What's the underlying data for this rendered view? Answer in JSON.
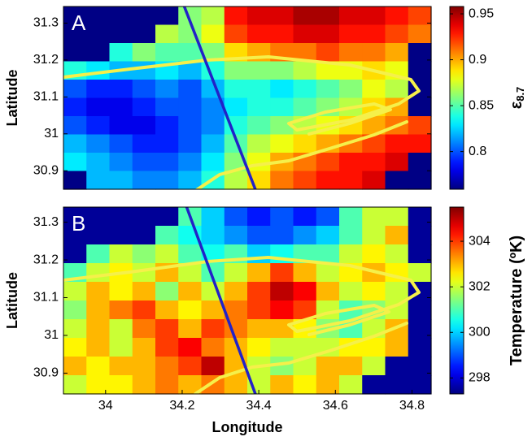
{
  "chart_data": [
    {
      "type": "heatmap",
      "panel_label": "A",
      "ylabel": "Latitude",
      "colormap": "jet",
      "colorbar_label": "ε",
      "colorbar_label_sub": "8.7",
      "xlim": [
        33.89,
        34.85
      ],
      "ylim": [
        30.85,
        31.345
      ],
      "yticks": [
        30.9,
        31,
        31.1,
        31.2,
        31.3
      ],
      "clim": [
        0.759,
        0.958
      ],
      "cticks": [
        0.8,
        0.85,
        0.9,
        0.95
      ],
      "z": [
        [
          0.76,
          0.76,
          0.76,
          0.76,
          0.76,
          0.86,
          0.87,
          0.93,
          0.94,
          0.94,
          0.95,
          0.95,
          0.94,
          0.94,
          0.93,
          0.92
        ],
        [
          0.76,
          0.76,
          0.76,
          0.76,
          0.87,
          0.86,
          0.88,
          0.92,
          0.93,
          0.93,
          0.94,
          0.94,
          0.93,
          0.93,
          0.92,
          0.91
        ],
        [
          0.76,
          0.76,
          0.84,
          0.86,
          0.85,
          0.85,
          0.86,
          0.89,
          0.9,
          0.91,
          0.91,
          0.92,
          0.91,
          0.91,
          0.9,
          0.76
        ],
        [
          0.84,
          0.83,
          0.82,
          0.82,
          0.83,
          0.82,
          0.84,
          0.86,
          0.86,
          0.86,
          0.87,
          0.88,
          0.88,
          0.89,
          0.88,
          0.76
        ],
        [
          0.8,
          0.79,
          0.79,
          0.8,
          0.81,
          0.8,
          0.82,
          0.84,
          0.84,
          0.83,
          0.84,
          0.85,
          0.86,
          0.88,
          0.87,
          0.76
        ],
        [
          0.79,
          0.78,
          0.78,
          0.79,
          0.8,
          0.8,
          0.81,
          0.83,
          0.84,
          0.84,
          0.85,
          0.86,
          0.87,
          0.89,
          0.9,
          0.76
        ],
        [
          0.8,
          0.79,
          0.78,
          0.78,
          0.79,
          0.8,
          0.81,
          0.84,
          0.85,
          0.86,
          0.87,
          0.88,
          0.89,
          0.9,
          0.91,
          0.92
        ],
        [
          0.82,
          0.81,
          0.8,
          0.79,
          0.79,
          0.8,
          0.82,
          0.85,
          0.87,
          0.88,
          0.89,
          0.9,
          0.91,
          0.92,
          0.93,
          0.93
        ],
        [
          0.83,
          0.82,
          0.81,
          0.8,
          0.8,
          0.81,
          0.83,
          0.86,
          0.88,
          0.9,
          0.91,
          0.92,
          0.93,
          0.93,
          0.94,
          0.76
        ],
        [
          0.76,
          0.82,
          0.82,
          0.81,
          0.81,
          0.82,
          0.84,
          0.87,
          0.89,
          0.91,
          0.92,
          0.93,
          0.93,
          0.94,
          0.76,
          0.76
        ]
      ]
    },
    {
      "type": "heatmap",
      "panel_label": "B",
      "ylabel": "Latitude",
      "xlabel": "Longitude",
      "colormap": "jet",
      "colorbar_label": "Temperature (ºK)",
      "xlim": [
        33.89,
        34.85
      ],
      "ylim": [
        30.845,
        31.34
      ],
      "xticks": [
        34,
        34.2,
        34.4,
        34.6,
        34.8
      ],
      "yticks": [
        30.9,
        31,
        31.1,
        31.2,
        31.3
      ],
      "clim": [
        297.3,
        305.5
      ],
      "cticks": [
        298,
        300,
        302,
        304
      ],
      "z": [
        [
          297.5,
          297.5,
          297.5,
          297.5,
          297.5,
          301,
          300,
          299,
          298.5,
          299,
          298.5,
          299,
          301,
          302,
          302,
          297.5
        ],
        [
          297.5,
          297.5,
          297.5,
          297.5,
          301,
          300.5,
          300,
          299.5,
          299,
          299,
          299.5,
          300,
          301,
          302,
          303,
          297.5
        ],
        [
          297.5,
          301,
          302,
          301.5,
          302,
          301,
          300.5,
          301,
          300,
          300.5,
          301,
          301,
          302,
          302.5,
          302,
          297.5
        ],
        [
          301,
          302,
          302.5,
          302,
          303,
          302,
          301,
          302,
          303,
          304,
          303,
          302,
          302.5,
          303,
          302.5,
          302
        ],
        [
          302,
          303,
          302.5,
          303,
          301.5,
          303,
          302,
          303,
          304,
          305,
          304.5,
          303,
          302,
          302.5,
          302,
          297.5
        ],
        [
          301.5,
          303,
          303.5,
          304,
          303,
          302.5,
          303,
          303.5,
          304,
          304.5,
          304,
          302,
          301,
          301.5,
          302,
          297.5
        ],
        [
          302,
          303,
          302,
          303.5,
          304,
          303,
          304,
          303.5,
          303,
          303,
          302.5,
          301.5,
          301,
          302,
          303,
          297.5
        ],
        [
          302.5,
          303,
          302,
          303,
          304,
          304.5,
          303.5,
          303,
          302.5,
          302,
          302,
          302,
          302.5,
          302.5,
          303,
          297.5
        ],
        [
          303,
          302.5,
          303,
          303,
          303.5,
          304,
          305,
          303,
          302,
          301.5,
          302,
          303,
          303,
          302,
          297.5,
          297.5
        ],
        [
          302,
          302.5,
          302.5,
          303,
          303.5,
          303,
          303.5,
          303,
          302,
          303,
          302.5,
          303,
          302,
          297.5,
          297.5,
          297.5
        ]
      ]
    }
  ]
}
